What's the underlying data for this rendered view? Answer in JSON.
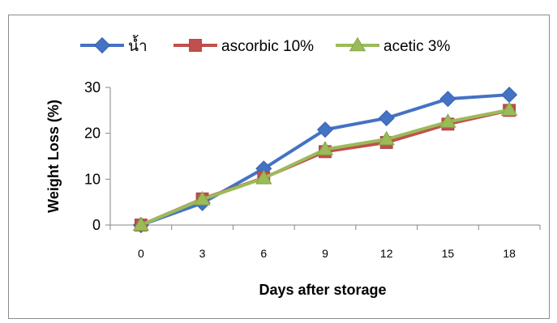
{
  "chart_data": {
    "type": "line",
    "title": "",
    "xlabel": "Days after storage",
    "ylabel": "Weight Loss (%)",
    "x": [
      0,
      3,
      6,
      9,
      12,
      15,
      18
    ],
    "xticks": [
      "0",
      "3",
      "6",
      "9",
      "12",
      "15",
      "18"
    ],
    "yticks": [
      "0",
      "10",
      "20",
      "30"
    ],
    "ylim": [
      0,
      30
    ],
    "grid": false,
    "legend_position": "top",
    "series": [
      {
        "name": "น้ำ",
        "color": "#4472C4",
        "marker": "diamond",
        "values": [
          0,
          4.8,
          12.3,
          20.8,
          23.3,
          27.5,
          28.4
        ]
      },
      {
        "name": "ascorbic 10%",
        "color": "#C0504D",
        "marker": "square",
        "values": [
          0,
          5.7,
          10.3,
          16.0,
          18.0,
          22.0,
          25.0
        ]
      },
      {
        "name": "acetic 3%",
        "color": "#9BBB59",
        "marker": "triangle",
        "values": [
          0,
          5.6,
          10.2,
          16.5,
          18.7,
          22.5,
          25.1
        ]
      }
    ]
  }
}
